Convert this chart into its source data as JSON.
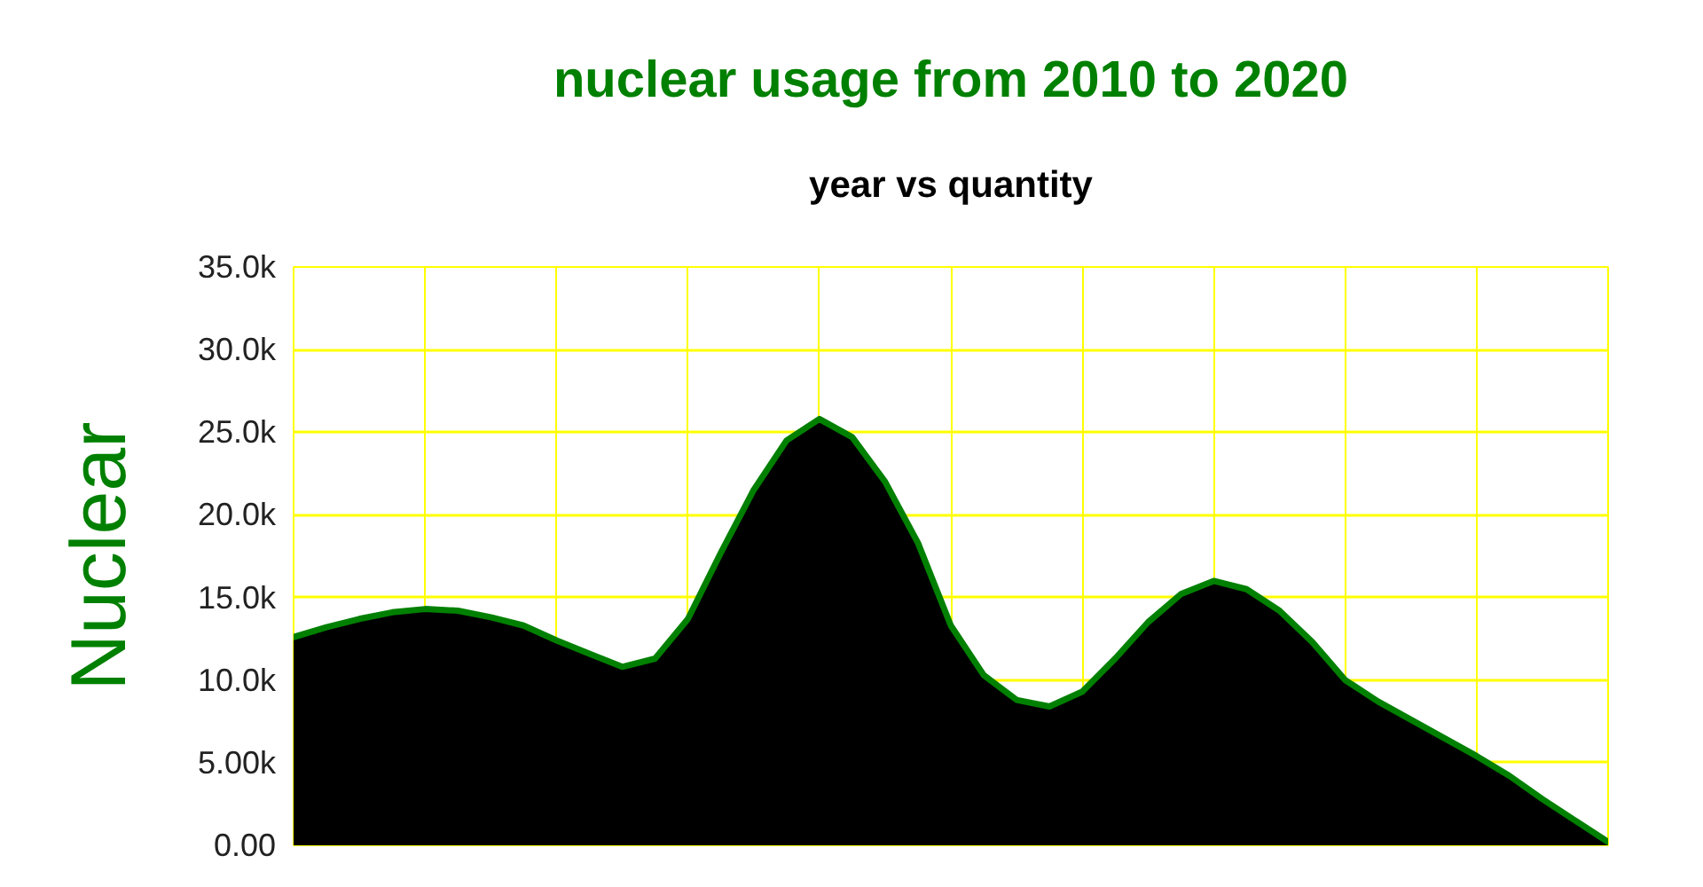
{
  "chart_data": {
    "type": "area",
    "title": "nuclear usage from 2010 to 2020",
    "subtitle": "year vs quantity",
    "ylabel": "Nuclear",
    "categories": [
      null,
      null,
      null,
      null,
      null,
      null,
      null,
      null,
      null,
      null,
      null,
      null,
      null,
      null,
      null,
      null,
      null,
      null,
      null,
      null,
      null,
      null,
      null,
      null,
      null,
      null,
      null,
      null,
      null,
      null,
      null,
      null,
      null,
      null,
      null,
      null,
      null,
      null,
      null,
      null,
      null
    ],
    "series": [
      {
        "color": "#000000",
        "values": [
          12600,
          13200,
          13700,
          14100,
          14300,
          14200,
          13800,
          13300,
          12400,
          11600,
          10800,
          11300,
          13700,
          17700,
          21500,
          24500,
          25800,
          24700,
          22000,
          18300,
          13300,
          10300,
          8800,
          8400,
          9300,
          11300,
          13500,
          15200,
          16000,
          15500,
          14200,
          12300,
          10000,
          8700,
          7600,
          6500,
          5400,
          4200,
          2800,
          1500,
          200
        ]
      }
    ],
    "ylim": [
      0,
      35000
    ],
    "yticks": [
      {
        "value": 0,
        "label": "0.00"
      },
      {
        "value": 5000,
        "label": "5.00k"
      },
      {
        "value": 10000,
        "label": "10.0k"
      },
      {
        "value": 15000,
        "label": "15.0k"
      },
      {
        "value": 20000,
        "label": "20.0k"
      },
      {
        "value": 25000,
        "label": "25.0k"
      },
      {
        "value": 30000,
        "label": "30.0k"
      },
      {
        "value": 35000,
        "label": "35.0k"
      }
    ],
    "grid": true
  }
}
